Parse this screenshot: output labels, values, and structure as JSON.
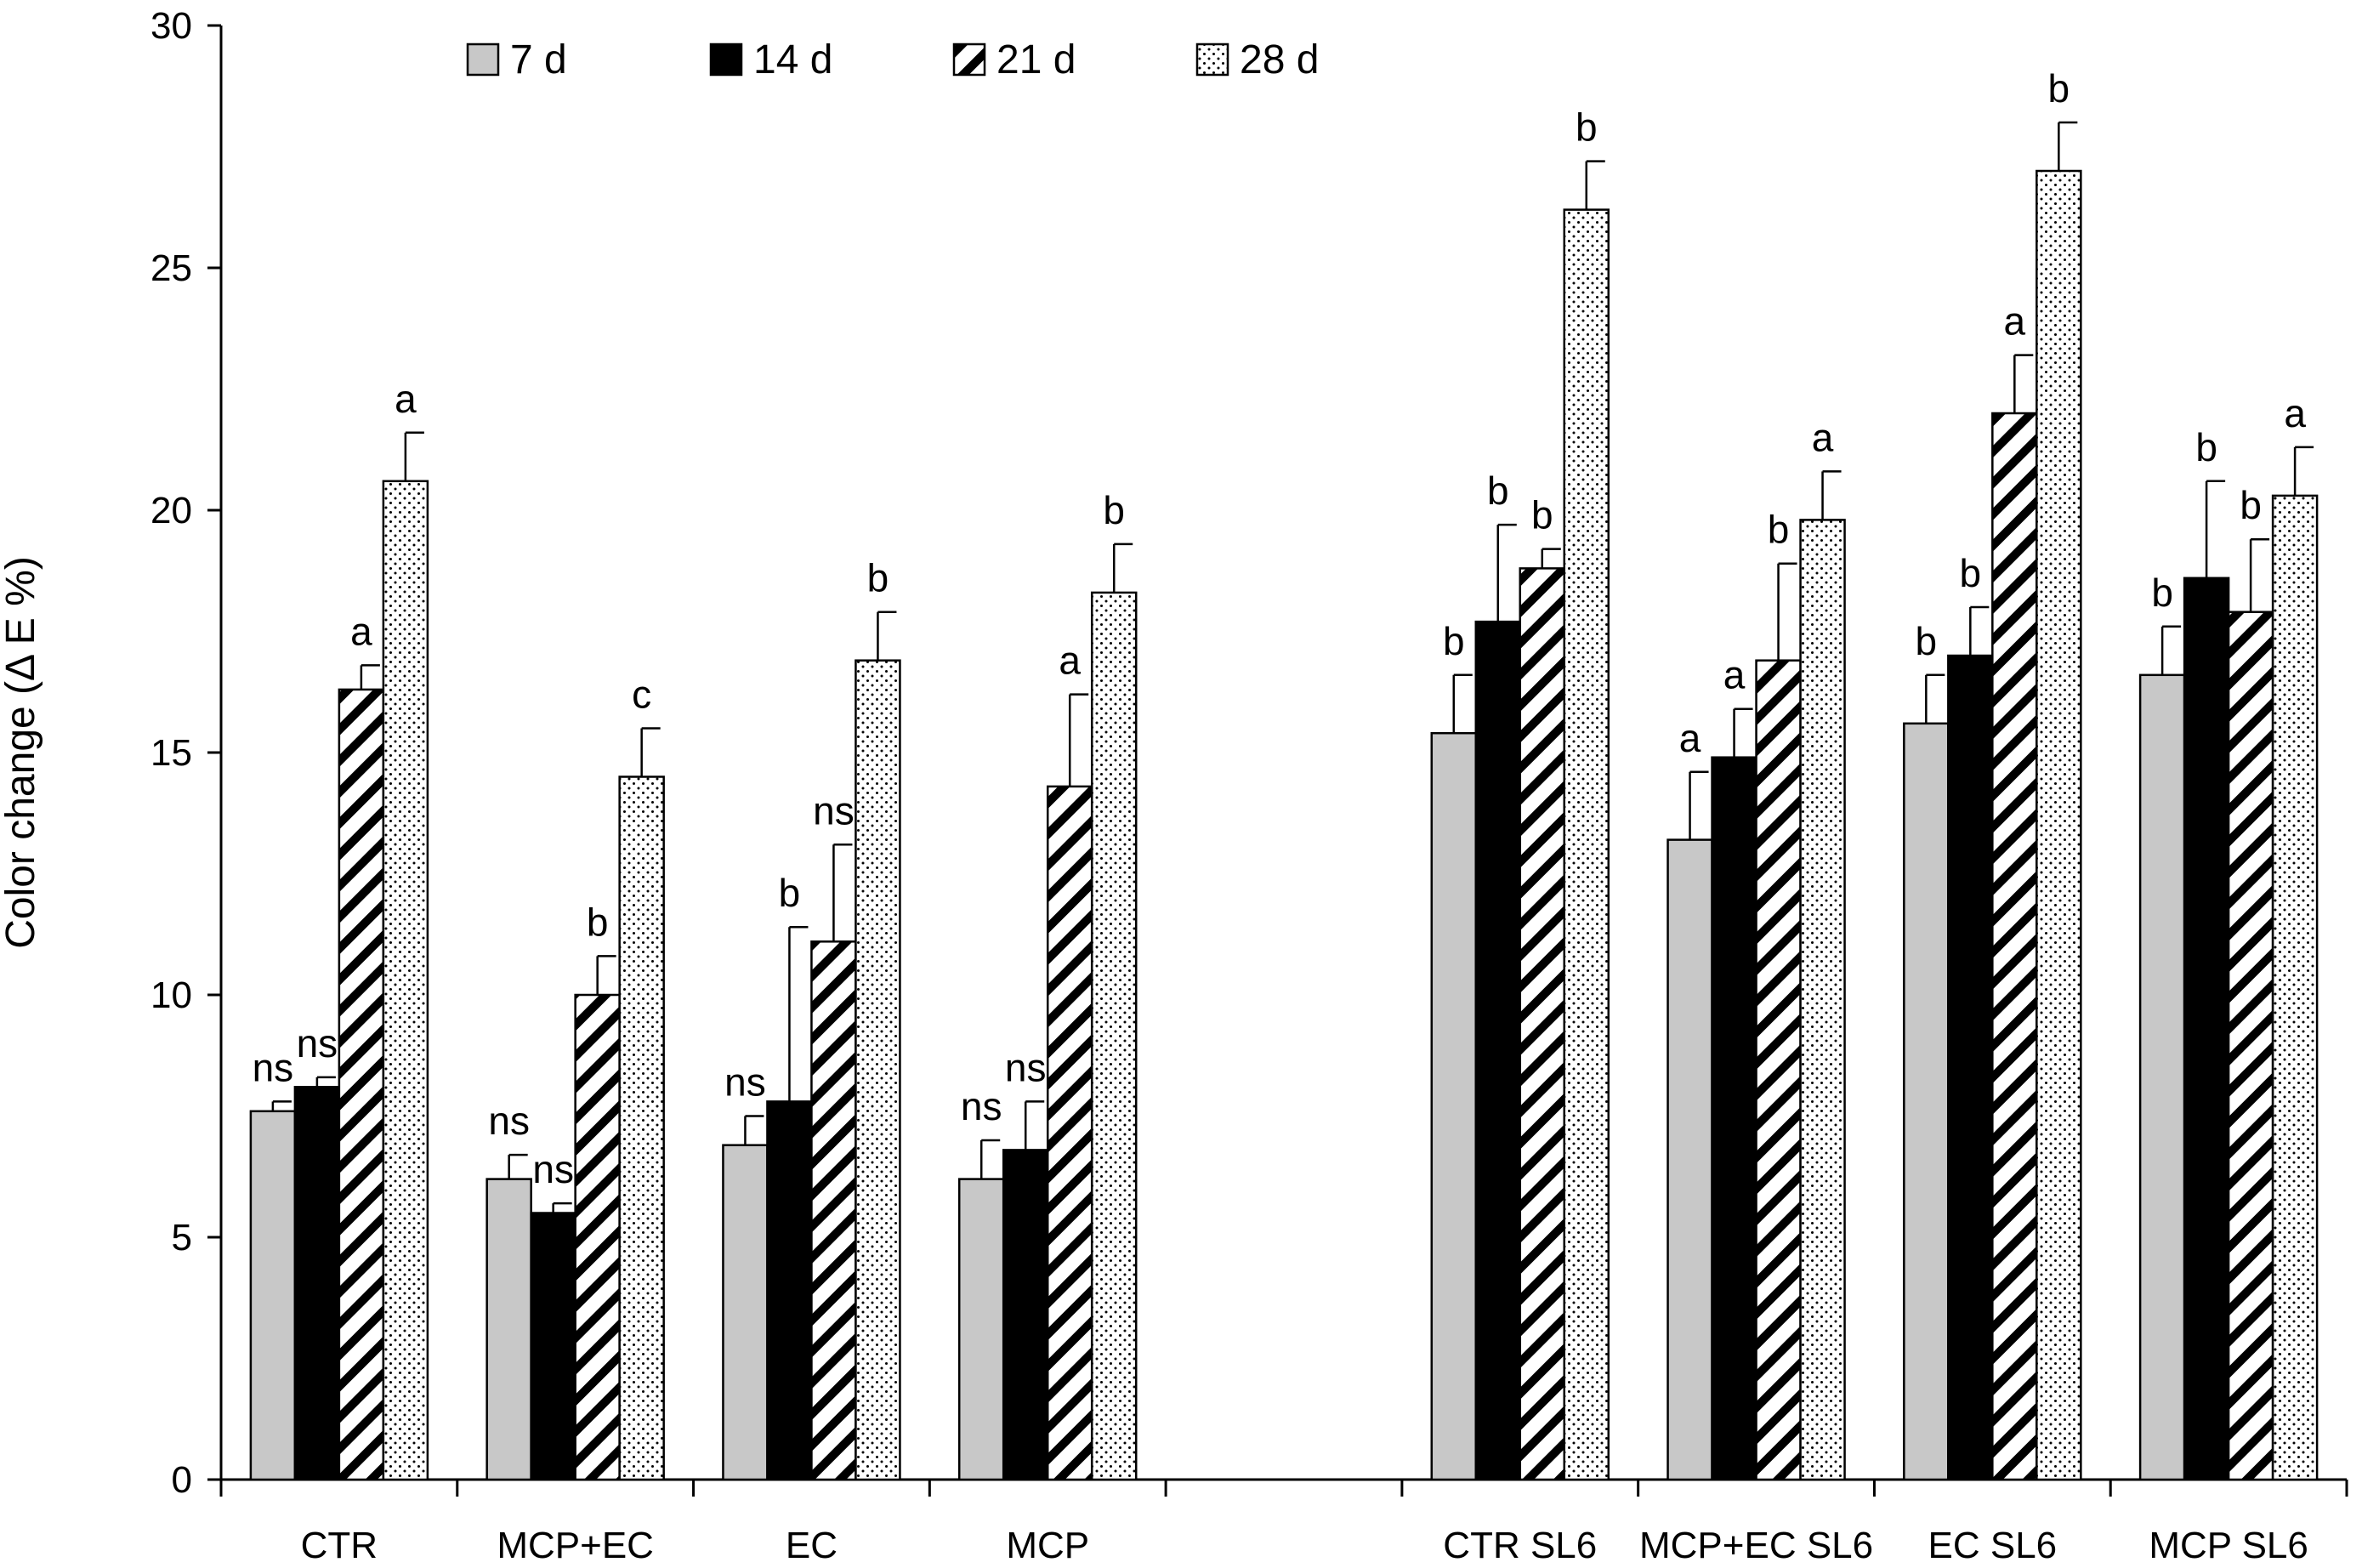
{
  "chart_data": {
    "type": "bar",
    "title": "",
    "xlabel": "",
    "ylabel": "Color change (Δ E %)",
    "ylim": [
      0,
      30
    ],
    "yticks": [
      "0",
      "5",
      "10",
      "15",
      "20",
      "25",
      "30"
    ],
    "grid": false,
    "legend_position": "top-left",
    "categories": [
      "CTR",
      "MCP+EC",
      "EC",
      "MCP",
      "",
      "CTR SL6",
      "MCP+EC SL6",
      "EC SL6",
      "MCP SL6"
    ],
    "series": [
      {
        "name": "7 d",
        "pattern": "solid-gray",
        "values": [
          7.6,
          6.2,
          6.9,
          6.2,
          null,
          15.4,
          13.2,
          15.6,
          16.6
        ],
        "errors": [
          0.2,
          0.5,
          0.6,
          0.8,
          null,
          1.2,
          1.4,
          1.0,
          1.0
        ],
        "labels": [
          "ns",
          "ns",
          "ns",
          "ns",
          "",
          "b",
          "a",
          "b",
          "b"
        ]
      },
      {
        "name": "14 d",
        "pattern": "solid-black",
        "values": [
          8.1,
          5.5,
          7.8,
          6.8,
          null,
          17.7,
          14.9,
          17.0,
          18.6
        ],
        "errors": [
          0.2,
          0.2,
          3.6,
          1.0,
          null,
          2.0,
          1.0,
          1.0,
          2.0
        ],
        "labels": [
          "ns",
          "ns",
          "",
          "ns",
          "",
          "b",
          "a",
          "b",
          "b"
        ]
      },
      {
        "name": "21 d",
        "pattern": "diagonal-hatch",
        "values": [
          16.3,
          10.0,
          11.1,
          14.3,
          null,
          18.8,
          16.9,
          22.0,
          17.9
        ],
        "errors": [
          0.5,
          0.8,
          2.0,
          1.9,
          null,
          0.4,
          2.0,
          1.2,
          1.5
        ],
        "labels": [
          "a",
          "b",
          "ns",
          "a",
          "",
          "b",
          "b",
          "a",
          "b"
        ]
      },
      {
        "name": "28 d",
        "pattern": "dotted",
        "values": [
          20.6,
          14.5,
          16.9,
          18.3,
          null,
          26.2,
          19.8,
          27.0,
          20.3
        ],
        "errors": [
          1.0,
          1.0,
          1.0,
          1.0,
          null,
          1.0,
          1.0,
          1.0,
          1.0
        ],
        "labels": [
          "a",
          "c",
          "b",
          "b",
          "",
          "b",
          "a",
          "b",
          "a"
        ]
      }
    ],
    "annotations": [
      {
        "category": "EC",
        "series": "14 d",
        "text": "b"
      }
    ]
  }
}
